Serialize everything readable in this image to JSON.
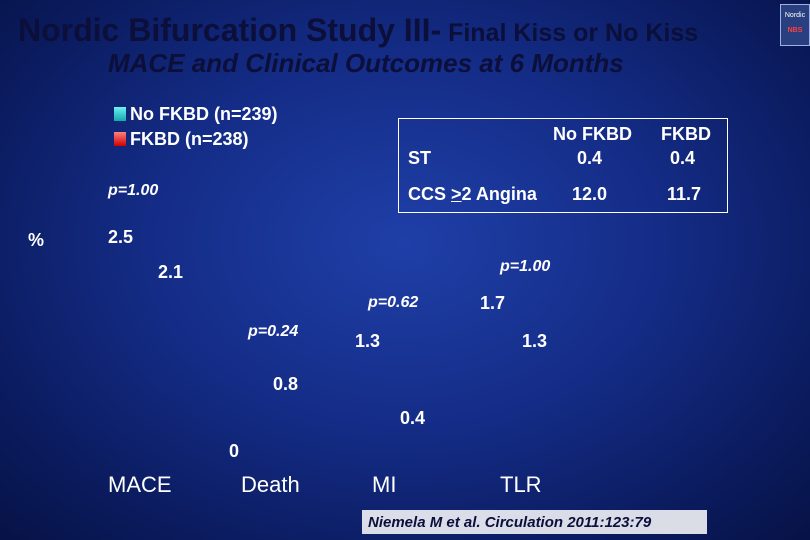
{
  "title_main": "Nordic Bifurcation Study III-",
  "title_rest": " Final ",
  "title_kiss": "Kiss or No Kiss",
  "subtitle": "MACE and Clinical Outcomes at 6 Months",
  "logo_text_top": "Nordic",
  "logo_text_bottom": "NBS",
  "legend": [
    {
      "label": "No FKBD (n=239)",
      "color": "#14a8b0"
    },
    {
      "label": "FKBD (n=238)",
      "color": "#d00000"
    }
  ],
  "table": {
    "headers": [
      "No FKBD",
      "FKBD"
    ],
    "rows": [
      {
        "label": "ST",
        "values": [
          "0.4",
          "0.4"
        ]
      },
      {
        "label_pre": "CCS ",
        "label_underline": ">",
        "label_post": "2 Angina",
        "values": [
          "12.0",
          "11.7"
        ]
      }
    ]
  },
  "ylabel": "%",
  "chart_data": {
    "type": "bar",
    "categories": [
      "MACE",
      "Death",
      "MI",
      "TLR"
    ],
    "series": [
      {
        "name": "No FKBD (n=239)",
        "values": [
          2.5,
          0.8,
          1.3,
          1.7
        ]
      },
      {
        "name": "FKBD (n=238)",
        "values": [
          2.1,
          0,
          0.4,
          1.3
        ]
      }
    ],
    "data_labels": [
      [
        "2.5",
        "0.8",
        "1.3",
        "1.7"
      ],
      [
        "2.1",
        "0",
        "0.4",
        "1.3"
      ]
    ],
    "p_values": [
      "p=1.00",
      "p=0.24",
      "p=0.62",
      "p=1.00"
    ]
  },
  "citation": "Niemela M et al. Circulation 2011:123:79"
}
